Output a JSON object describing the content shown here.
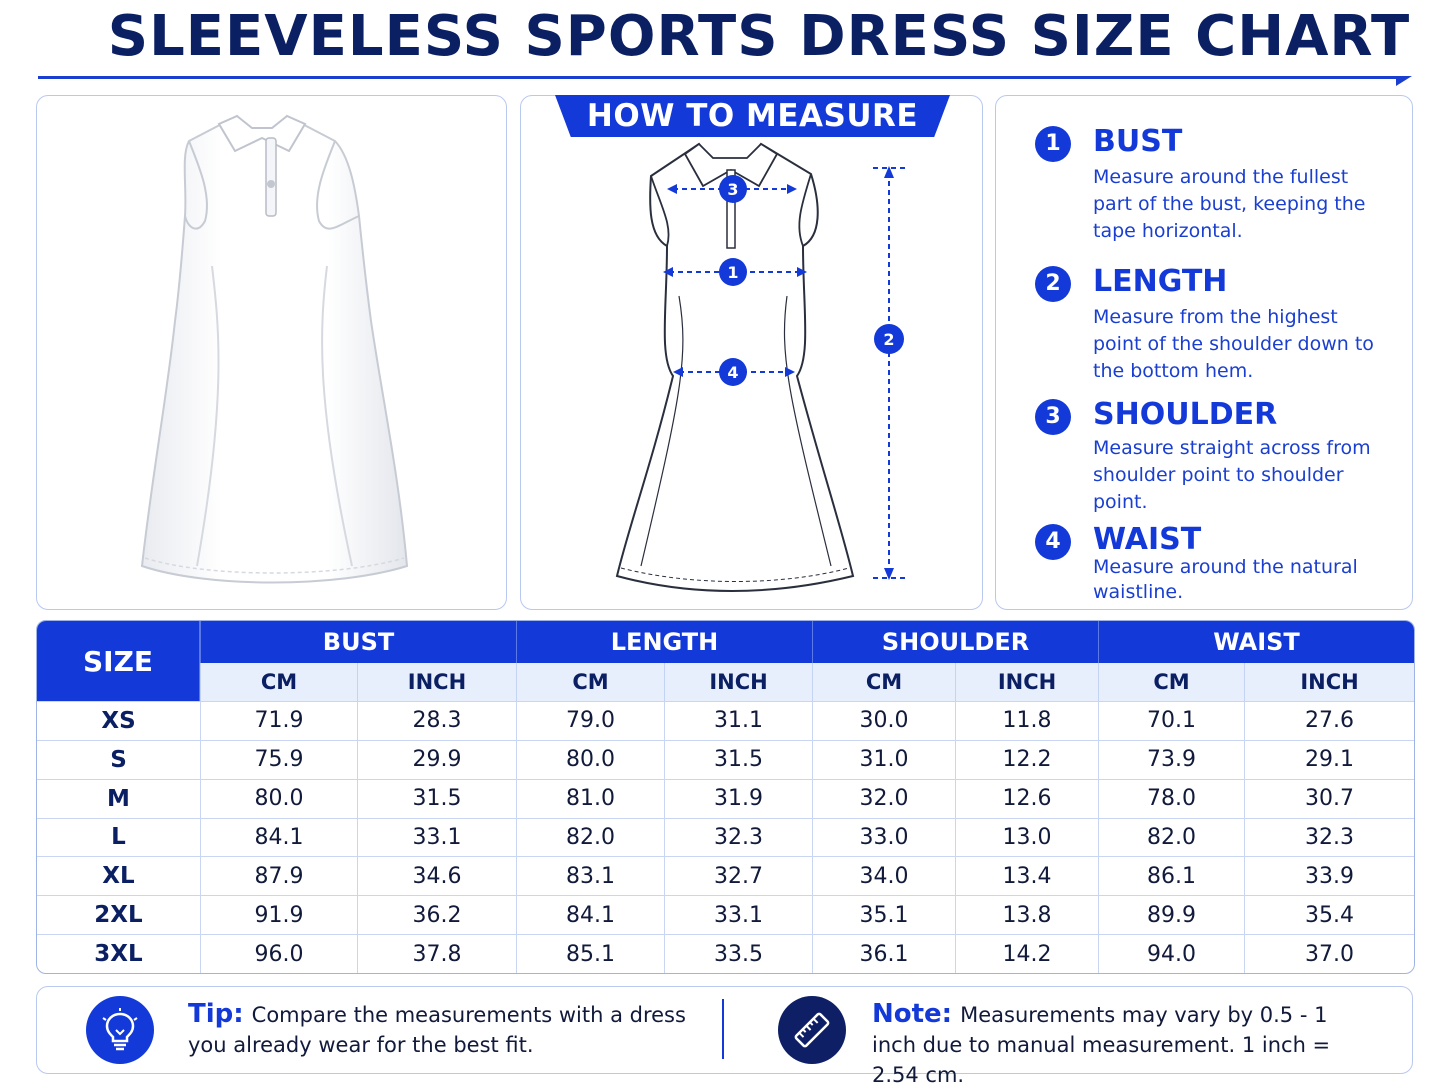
{
  "header": {
    "title": "SLEEVELESS SPORTS DRESS SIZE CHART"
  },
  "measure_panel": {
    "banner": "HOW TO MEASURE",
    "markers": [
      "1",
      "2",
      "3",
      "4"
    ]
  },
  "guide": [
    {
      "num": "1",
      "title": "BUST",
      "desc": "Measure around the fullest part of the bust, keeping the tape horizontal."
    },
    {
      "num": "2",
      "title": "LENGTH",
      "desc": "Measure from the highest point of the shoulder down to the bottom hem."
    },
    {
      "num": "3",
      "title": "SHOULDER",
      "desc": "Measure straight across from shoulder point to shoulder point."
    },
    {
      "num": "4",
      "title": "WAIST",
      "desc": "Measure around the natural waistline."
    }
  ],
  "table": {
    "size_header": "SIZE",
    "groups": [
      "BUST",
      "LENGTH",
      "SHOULDER",
      "WAIST"
    ],
    "units": [
      "CM",
      "INCH",
      "CM",
      "INCH",
      "CM",
      "INCH",
      "CM",
      "INCH"
    ],
    "rows": [
      [
        "XS",
        "71.9",
        "28.3",
        "79.0",
        "31.1",
        "30.0",
        "11.8",
        "70.1",
        "27.6"
      ],
      [
        "S",
        "75.9",
        "29.9",
        "80.0",
        "31.5",
        "31.0",
        "12.2",
        "73.9",
        "29.1"
      ],
      [
        "M",
        "80.0",
        "31.5",
        "81.0",
        "31.9",
        "32.0",
        "12.6",
        "78.0",
        "30.7"
      ],
      [
        "L",
        "84.1",
        "33.1",
        "82.0",
        "32.3",
        "33.0",
        "13.0",
        "82.0",
        "32.3"
      ],
      [
        "XL",
        "87.9",
        "34.6",
        "83.1",
        "32.7",
        "34.0",
        "13.4",
        "86.1",
        "33.9"
      ],
      [
        "2XL",
        "91.9",
        "36.2",
        "84.1",
        "33.1",
        "35.1",
        "13.8",
        "89.9",
        "35.4"
      ],
      [
        "3XL",
        "96.0",
        "37.8",
        "85.1",
        "33.5",
        "36.1",
        "14.2",
        "94.0",
        "37.0"
      ]
    ]
  },
  "footer": {
    "tip_label": "Tip:",
    "tip_text": "Compare the measurements with a dress you already wear for the best fit.",
    "note_label": "Note:",
    "note_text": "Measurements may vary by 0.5 - 1 inch due to manual measurement.  1 inch = 2.54 cm."
  },
  "icons": {
    "tip": "lightbulb-icon",
    "note": "ruler-icon"
  },
  "colors": {
    "accent": "#1339d8",
    "navy": "#0b1f63",
    "unit_row_bg": "#e7eefc"
  }
}
